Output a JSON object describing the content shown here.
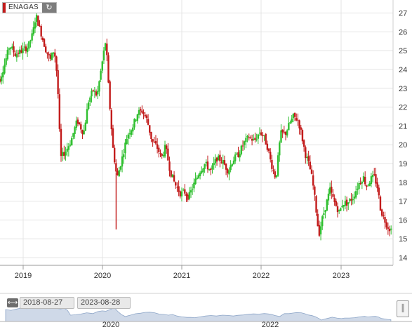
{
  "ticker": {
    "symbol": "ENAGAS",
    "refresh_icon": "refresh-icon"
  },
  "navigator": {
    "from_date": "2018-08-27",
    "to_date": "2023-08-28",
    "year_labels": [
      "2020",
      "2022"
    ]
  },
  "colors": {
    "up": "#2fbf2f",
    "down": "#c21b1b",
    "grid": "#e4e4e4",
    "navigator_fill": "#cfd9e8"
  },
  "chart_data": {
    "type": "candlestick",
    "title": "ENAGAS",
    "xlabel": "",
    "ylabel": "",
    "ylim": [
      14,
      27.5
    ],
    "y_ticks": [
      14,
      15,
      16,
      17,
      18,
      19,
      20,
      21,
      22,
      23,
      24,
      25,
      26,
      27
    ],
    "x_ticks": [
      "2019",
      "2020",
      "2021",
      "2022",
      "2023"
    ],
    "grid": true,
    "x_range": [
      "2018-08-27",
      "2023-08-28"
    ],
    "series": [
      {
        "type": "close_path",
        "values": [
          [
            2018.65,
            24.0
          ],
          [
            2018.72,
            23.4
          ],
          [
            2018.78,
            24.2
          ],
          [
            2018.85,
            25.3
          ],
          [
            2018.92,
            24.8
          ],
          [
            2019.0,
            25.0
          ],
          [
            2019.08,
            25.2
          ],
          [
            2019.14,
            25.9
          ],
          [
            2019.18,
            26.9
          ],
          [
            2019.24,
            26.0
          ],
          [
            2019.3,
            25.1
          ],
          [
            2019.36,
            24.5
          ],
          [
            2019.41,
            25.1
          ],
          [
            2019.45,
            23.5
          ],
          [
            2019.49,
            19.3
          ],
          [
            2019.56,
            19.7
          ],
          [
            2019.62,
            20.2
          ],
          [
            2019.7,
            21.3
          ],
          [
            2019.78,
            20.6
          ],
          [
            2019.84,
            22.3
          ],
          [
            2019.9,
            22.9
          ],
          [
            2019.95,
            22.6
          ],
          [
            2020.0,
            24.0
          ],
          [
            2020.06,
            25.6
          ],
          [
            2020.1,
            22.6
          ],
          [
            2020.15,
            19.8
          ],
          [
            2020.2,
            18.2
          ],
          [
            2020.27,
            19.4
          ],
          [
            2020.33,
            20.5
          ],
          [
            2020.4,
            21.0
          ],
          [
            2020.46,
            21.7
          ],
          [
            2020.52,
            21.8
          ],
          [
            2020.58,
            21.3
          ],
          [
            2020.64,
            20.2
          ],
          [
            2020.7,
            19.9
          ],
          [
            2020.76,
            19.3
          ],
          [
            2020.81,
            19.9
          ],
          [
            2020.87,
            18.6
          ],
          [
            2020.93,
            17.9
          ],
          [
            2021.0,
            17.4
          ],
          [
            2021.05,
            17.5
          ],
          [
            2021.1,
            17.2
          ],
          [
            2021.17,
            17.9
          ],
          [
            2021.24,
            18.6
          ],
          [
            2021.31,
            19.0
          ],
          [
            2021.38,
            18.6
          ],
          [
            2021.46,
            19.3
          ],
          [
            2021.53,
            19.1
          ],
          [
            2021.6,
            18.6
          ],
          [
            2021.66,
            19.2
          ],
          [
            2021.73,
            19.5
          ],
          [
            2021.8,
            20.1
          ],
          [
            2021.86,
            20.4
          ],
          [
            2021.93,
            20.2
          ],
          [
            2022.0,
            20.7
          ],
          [
            2022.05,
            20.4
          ],
          [
            2022.1,
            19.8
          ],
          [
            2022.14,
            19.0
          ],
          [
            2022.2,
            18.2
          ],
          [
            2022.26,
            20.6
          ],
          [
            2022.32,
            20.6
          ],
          [
            2022.37,
            21.1
          ],
          [
            2022.42,
            21.5
          ],
          [
            2022.48,
            21.3
          ],
          [
            2022.52,
            20.6
          ],
          [
            2022.57,
            19.5
          ],
          [
            2022.62,
            18.9
          ],
          [
            2022.66,
            18.1
          ],
          [
            2022.7,
            16.8
          ],
          [
            2022.74,
            15.2
          ],
          [
            2022.78,
            16.0
          ],
          [
            2022.83,
            16.8
          ],
          [
            2022.88,
            17.6
          ],
          [
            2022.94,
            16.9
          ],
          [
            2023.0,
            16.4
          ],
          [
            2023.04,
            16.9
          ],
          [
            2023.1,
            16.9
          ],
          [
            2023.17,
            17.2
          ],
          [
            2023.24,
            17.9
          ],
          [
            2023.3,
            18.3
          ],
          [
            2023.34,
            17.8
          ],
          [
            2023.4,
            18.2
          ],
          [
            2023.44,
            18.3
          ],
          [
            2023.48,
            17.7
          ],
          [
            2023.52,
            16.5
          ],
          [
            2023.56,
            16.1
          ],
          [
            2023.6,
            15.7
          ],
          [
            2023.64,
            15.5
          ]
        ]
      }
    ]
  }
}
